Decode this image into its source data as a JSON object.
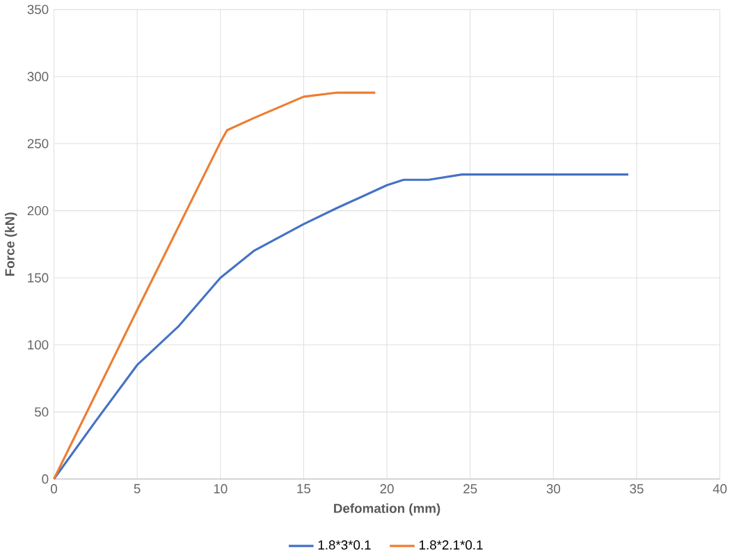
{
  "chart_data": {
    "type": "line",
    "xlabel": "Defomation (mm)",
    "ylabel": "Force (kN)",
    "xlim": [
      0,
      40
    ],
    "xticks": [
      0,
      5,
      10,
      15,
      20,
      25,
      30,
      35,
      40
    ],
    "ylim": [
      0,
      350
    ],
    "yticks": [
      0,
      50,
      100,
      150,
      200,
      250,
      300,
      350
    ],
    "grid": true,
    "legend": "bottom",
    "marker": "none",
    "line_style": "solid",
    "series": [
      {
        "name": "1.8*3*0.1",
        "color": "#4472c4",
        "x": [
          0,
          2.5,
          5,
          7.5,
          10,
          12,
          15,
          17,
          20,
          21,
          22.5,
          24.5,
          34.5
        ],
        "values": [
          0,
          43,
          85,
          114,
          150,
          170,
          190,
          202,
          219,
          223,
          223,
          227,
          227
        ]
      },
      {
        "name": "1.8*2.1*0.1",
        "color": "#ed7d31",
        "x": [
          0,
          5,
          10,
          10.4,
          12,
          15,
          17,
          19.3
        ],
        "values": [
          0,
          126,
          251,
          260,
          269,
          285,
          288,
          288
        ]
      }
    ]
  }
}
